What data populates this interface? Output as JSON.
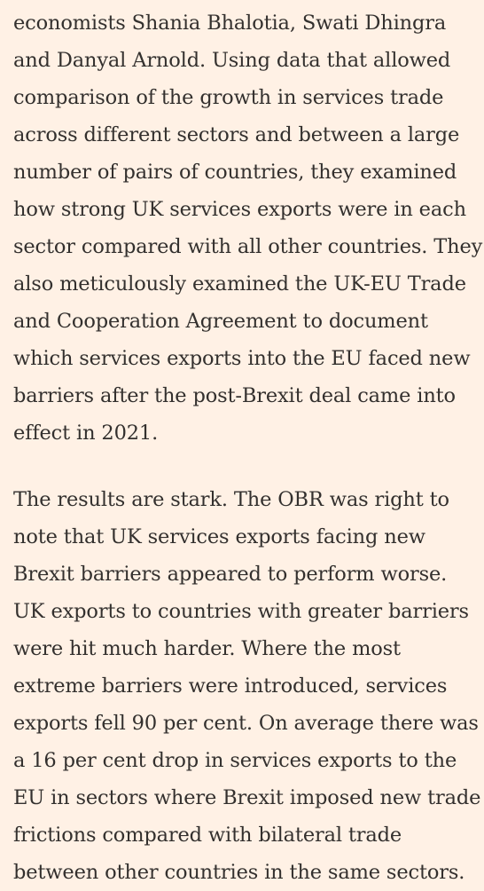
{
  "article": {
    "paragraphs": [
      {
        "lines": [
          "economists Shania Bhalotia, Swati Dhingra",
          "and Danyal Arnold. Using data that allowed",
          "comparison of the growth in services trade",
          "across different sectors and between a large",
          "number of pairs of countries, they examined",
          "how strong UK services exports were in each",
          "sector compared with all other countries. They",
          "also meticulously examined the UK-EU Trade",
          "and Cooperation Agreement to document",
          "which services exports into the EU faced new",
          "barriers after the post-Brexit deal came into",
          "effect in 2021."
        ]
      },
      {
        "lines": [
          "The results are stark. The OBR was right to",
          "note that UK services exports facing new",
          "Brexit barriers appeared to perform worse.",
          "UK exports to countries with greater barriers",
          "were hit much harder. Where the most",
          "extreme barriers were introduced, services",
          "exports fell 90 per cent. On average there was",
          "a 16 per cent drop in services exports to the",
          "EU in sectors where Brexit imposed new trade",
          "frictions compared with bilateral trade",
          "between other countries in the same sectors."
        ]
      }
    ]
  }
}
